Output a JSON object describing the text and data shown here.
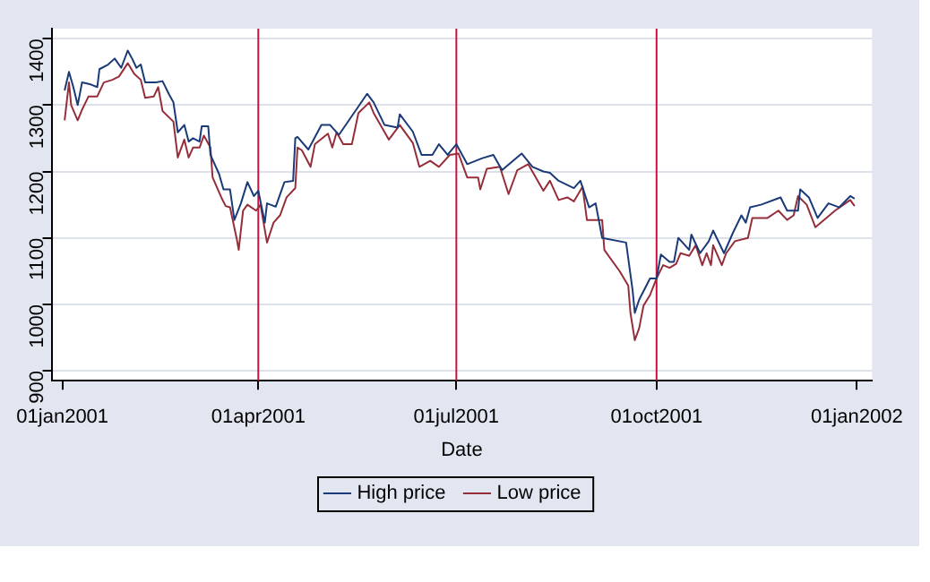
{
  "chart_data": {
    "type": "line",
    "xlabel": "Date",
    "xlim": [
      "2000-12-27",
      "2002-01-08"
    ],
    "xticks": [
      {
        "value": "2001-01-01",
        "label": "01jan2001"
      },
      {
        "value": "2001-04-01",
        "label": "01apr2001"
      },
      {
        "value": "2001-07-01",
        "label": "01jul2001"
      },
      {
        "value": "2001-10-01",
        "label": "01oct2001"
      },
      {
        "value": "2002-01-01",
        "label": "01jan2002"
      }
    ],
    "ylim": [
      885,
      1415
    ],
    "yticks": [
      900,
      1000,
      1100,
      1200,
      1300,
      1400
    ],
    "grid": "y",
    "legend": "bottom",
    "marker": "none",
    "line_style": "solid",
    "ref_lines": [
      {
        "axis": "x",
        "value": "2001-04-01",
        "color": "#cc1040"
      },
      {
        "axis": "x",
        "value": "2001-07-01",
        "color": "#cc1040"
      },
      {
        "axis": "x",
        "value": "2001-10-01",
        "color": "#cc1040"
      }
    ],
    "series": [
      {
        "name": "High price",
        "color": "#1a3a78",
        "x": [
          "2001-01-02",
          "2001-01-04",
          "2001-01-06",
          "2001-01-08",
          "2001-01-10",
          "2001-01-14",
          "2001-01-17",
          "2001-01-18",
          "2001-01-22",
          "2001-01-25",
          "2001-01-28",
          "2001-01-31",
          "2001-02-02",
          "2001-02-04",
          "2001-02-06",
          "2001-02-08",
          "2001-02-13",
          "2001-02-16",
          "2001-02-19",
          "2001-02-21",
          "2001-02-23",
          "2001-02-26",
          "2001-02-28",
          "2001-03-02",
          "2001-03-05",
          "2001-03-06",
          "2001-03-09",
          "2001-03-10",
          "2001-03-14",
          "2001-03-16",
          "2001-03-19",
          "2001-03-21",
          "2001-03-24",
          "2001-03-27",
          "2001-03-30",
          "2001-04-01",
          "2001-04-04",
          "2001-04-05",
          "2001-04-09",
          "2001-04-13",
          "2001-04-17",
          "2001-04-18",
          "2001-04-19",
          "2001-04-24",
          "2001-04-30",
          "2001-05-04",
          "2001-05-08",
          "2001-05-16",
          "2001-05-21",
          "2001-05-24",
          "2001-05-29",
          "2001-06-04",
          "2001-06-05",
          "2001-06-11",
          "2001-06-15",
          "2001-06-20",
          "2001-06-23",
          "2001-06-27",
          "2001-07-01",
          "2001-07-06",
          "2001-07-13",
          "2001-07-18",
          "2001-07-22",
          "2001-07-31",
          "2001-08-05",
          "2001-08-10",
          "2001-08-13",
          "2001-08-17",
          "2001-08-24",
          "2001-08-27",
          "2001-08-31",
          "2001-09-03",
          "2001-09-06",
          "2001-09-17",
          "2001-09-20",
          "2001-09-21",
          "2001-09-23",
          "2001-09-28",
          "2001-10-01",
          "2001-10-03",
          "2001-10-07",
          "2001-10-09",
          "2001-10-11",
          "2001-10-16",
          "2001-10-17",
          "2001-10-21",
          "2001-10-25",
          "2001-10-27",
          "2001-11-01",
          "2001-11-05",
          "2001-11-09",
          "2001-11-11",
          "2001-11-13",
          "2001-11-18",
          "2001-11-27",
          "2001-11-30",
          "2001-12-05",
          "2001-12-06",
          "2001-12-10",
          "2001-12-14",
          "2001-12-19",
          "2001-12-24",
          "2001-12-29",
          "2001-12-31"
        ],
        "values": [
          1322,
          1350,
          1327,
          1300,
          1334,
          1331,
          1327,
          1354,
          1361,
          1370,
          1356,
          1382,
          1370,
          1356,
          1361,
          1334,
          1334,
          1336,
          1316,
          1304,
          1259,
          1270,
          1245,
          1250,
          1245,
          1268,
          1268,
          1225,
          1196,
          1173,
          1173,
          1127,
          1152,
          1184,
          1163,
          1171,
          1123,
          1152,
          1147,
          1184,
          1186,
          1250,
          1252,
          1233,
          1270,
          1270,
          1255,
          1293,
          1317,
          1304,
          1270,
          1266,
          1286,
          1260,
          1225,
          1225,
          1241,
          1225,
          1241,
          1211,
          1220,
          1225,
          1202,
          1227,
          1207,
          1200,
          1198,
          1186,
          1175,
          1186,
          1146,
          1152,
          1100,
          1093,
          1021,
          987,
          1007,
          1039,
          1039,
          1075,
          1064,
          1064,
          1100,
          1082,
          1105,
          1077,
          1095,
          1111,
          1077,
          1107,
          1134,
          1123,
          1146,
          1150,
          1161,
          1141,
          1141,
          1173,
          1161,
          1130,
          1152,
          1146,
          1163,
          1159
        ]
      },
      {
        "name": "Low price",
        "color": "#962e3a",
        "x": [
          "2001-01-02",
          "2001-01-04",
          "2001-01-05",
          "2001-01-08",
          "2001-01-10",
          "2001-01-13",
          "2001-01-17",
          "2001-01-20",
          "2001-01-24",
          "2001-01-27",
          "2001-01-31",
          "2001-02-03",
          "2001-02-06",
          "2001-02-08",
          "2001-02-12",
          "2001-02-14",
          "2001-02-16",
          "2001-02-21",
          "2001-02-23",
          "2001-02-26",
          "2001-02-28",
          "2001-03-02",
          "2001-03-05",
          "2001-03-07",
          "2001-03-10",
          "2001-03-11",
          "2001-03-15",
          "2001-03-17",
          "2001-03-19",
          "2001-03-22",
          "2001-03-23",
          "2001-03-25",
          "2001-03-27",
          "2001-03-31",
          "2001-04-02",
          "2001-04-05",
          "2001-04-08",
          "2001-04-11",
          "2001-04-14",
          "2001-04-18",
          "2001-04-19",
          "2001-04-21",
          "2001-04-25",
          "2001-04-27",
          "2001-05-03",
          "2001-05-05",
          "2001-05-07",
          "2001-05-10",
          "2001-05-14",
          "2001-05-17",
          "2001-05-22",
          "2001-05-24",
          "2001-05-31",
          "2001-06-05",
          "2001-06-11",
          "2001-06-14",
          "2001-06-19",
          "2001-06-23",
          "2001-06-28",
          "2001-07-02",
          "2001-07-06",
          "2001-07-11",
          "2001-07-12",
          "2001-07-15",
          "2001-07-21",
          "2001-07-25",
          "2001-07-29",
          "2001-08-03",
          "2001-08-10",
          "2001-08-13",
          "2001-08-17",
          "2001-08-21",
          "2001-08-24",
          "2001-08-28",
          "2001-08-30",
          "2001-09-06",
          "2001-09-07",
          "2001-09-14",
          "2001-09-18",
          "2001-09-19",
          "2001-09-21",
          "2001-09-23",
          "2001-09-25",
          "2001-09-28",
          "2001-10-01",
          "2001-10-04",
          "2001-10-07",
          "2001-10-10",
          "2001-10-12",
          "2001-10-16",
          "2001-10-19",
          "2001-10-22",
          "2001-10-24",
          "2001-10-26",
          "2001-10-27",
          "2001-10-31",
          "2001-11-02",
          "2001-11-06",
          "2001-11-12",
          "2001-11-14",
          "2001-11-21",
          "2001-11-26",
          "2001-11-30",
          "2001-12-03",
          "2001-12-05",
          "2001-12-09",
          "2001-12-13",
          "2001-12-18",
          "2001-12-22",
          "2001-12-29",
          "2001-12-31"
        ],
        "values": [
          1277,
          1334,
          1300,
          1277,
          1293,
          1313,
          1313,
          1334,
          1338,
          1343,
          1363,
          1347,
          1338,
          1311,
          1313,
          1327,
          1291,
          1275,
          1221,
          1248,
          1221,
          1236,
          1236,
          1254,
          1236,
          1191,
          1161,
          1148,
          1146,
          1100,
          1082,
          1141,
          1150,
          1141,
          1150,
          1093,
          1123,
          1134,
          1161,
          1175,
          1236,
          1232,
          1207,
          1241,
          1257,
          1236,
          1259,
          1241,
          1241,
          1288,
          1304,
          1288,
          1248,
          1270,
          1243,
          1207,
          1216,
          1207,
          1225,
          1227,
          1191,
          1191,
          1173,
          1204,
          1207,
          1166,
          1202,
          1211,
          1171,
          1186,
          1157,
          1161,
          1155,
          1177,
          1127,
          1127,
          1082,
          1050,
          1028,
          987,
          946,
          964,
          998,
          1014,
          1039,
          1059,
          1055,
          1061,
          1077,
          1073,
          1089,
          1059,
          1077,
          1059,
          1089,
          1059,
          1077,
          1095,
          1100,
          1130,
          1130,
          1141,
          1127,
          1134,
          1163,
          1150,
          1116,
          1130,
          1141,
          1157,
          1148
        ]
      }
    ]
  }
}
